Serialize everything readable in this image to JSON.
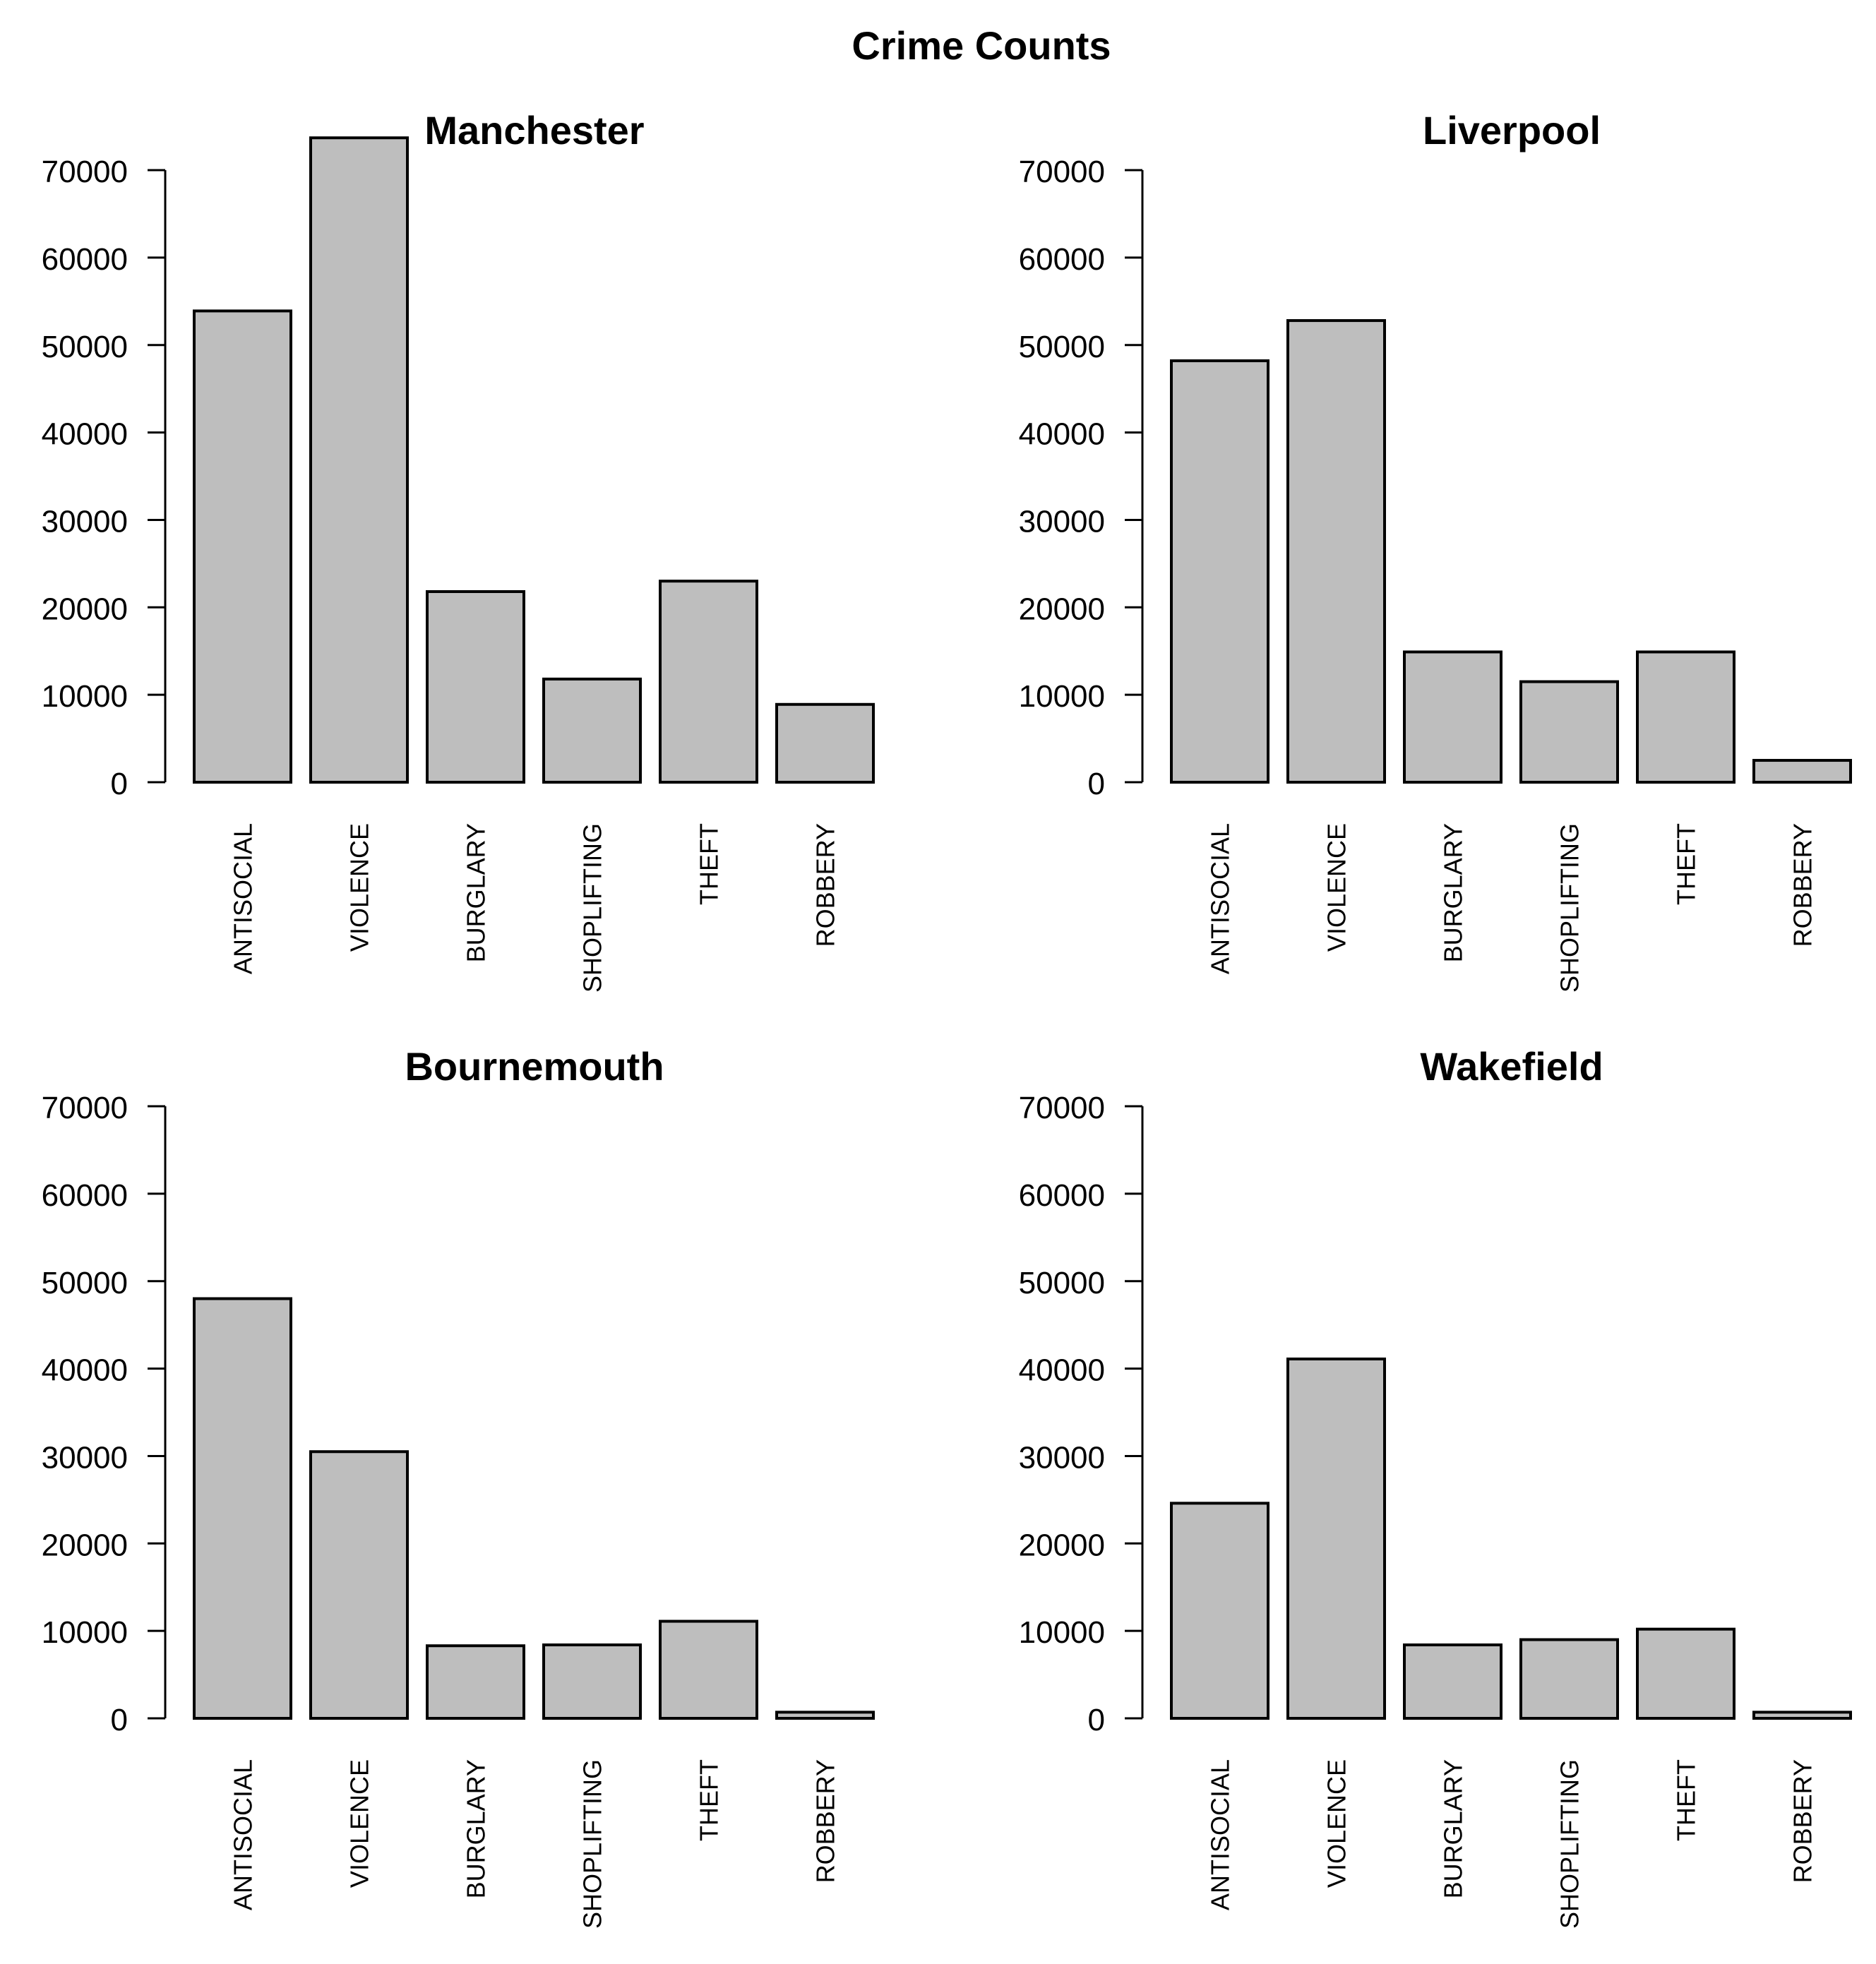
{
  "figure": {
    "title": "Crime Counts"
  },
  "colors": {
    "bar_fill": "#bebebe",
    "bar_stroke": "#000000",
    "text": "#000000",
    "background": "#ffffff"
  },
  "chart_data": [
    {
      "type": "bar",
      "title": "Manchester",
      "categories": [
        "ANTISOCIAL",
        "VIOLENCE",
        "BURGLARY",
        "SHOPLIFTING",
        "THEFT",
        "ROBBERY"
      ],
      "values": [
        53900,
        73700,
        21800,
        11800,
        23000,
        8900
      ],
      "yticks": [
        0,
        10000,
        20000,
        30000,
        40000,
        50000,
        60000,
        70000
      ],
      "ylim": [
        0,
        73700
      ],
      "xlabel": "",
      "ylabel": ""
    },
    {
      "type": "bar",
      "title": "Liverpool",
      "categories": [
        "ANTISOCIAL",
        "VIOLENCE",
        "BURGLARY",
        "SHOPLIFTING",
        "THEFT",
        "ROBBERY"
      ],
      "values": [
        48200,
        52800,
        14900,
        11500,
        14900,
        2500
      ],
      "yticks": [
        0,
        10000,
        20000,
        30000,
        40000,
        50000,
        60000,
        70000
      ],
      "ylim": [
        0,
        73700
      ],
      "xlabel": "",
      "ylabel": ""
    },
    {
      "type": "bar",
      "title": "Bournemouth",
      "categories": [
        "ANTISOCIAL",
        "VIOLENCE",
        "BURGLARY",
        "SHOPLIFTING",
        "THEFT",
        "ROBBERY"
      ],
      "values": [
        48000,
        30500,
        8300,
        8400,
        11100,
        700
      ],
      "yticks": [
        0,
        10000,
        20000,
        30000,
        40000,
        50000,
        60000,
        70000
      ],
      "ylim": [
        0,
        73700
      ],
      "xlabel": "",
      "ylabel": ""
    },
    {
      "type": "bar",
      "title": "Wakefield",
      "categories": [
        "ANTISOCIAL",
        "VIOLENCE",
        "BURGLARY",
        "SHOPLIFTING",
        "THEFT",
        "ROBBERY"
      ],
      "values": [
        24600,
        41100,
        8400,
        9000,
        10200,
        700
      ],
      "yticks": [
        0,
        10000,
        20000,
        30000,
        40000,
        50000,
        60000,
        70000
      ],
      "ylim": [
        0,
        73700
      ],
      "xlabel": "",
      "ylabel": ""
    }
  ]
}
